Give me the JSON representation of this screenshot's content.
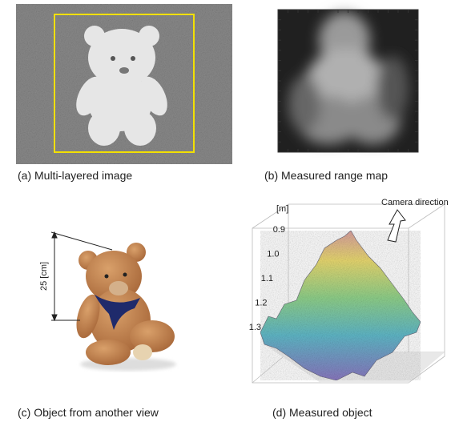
{
  "panels": [
    {
      "caption": "(a) Multi-layered image"
    },
    {
      "caption": "(b) Measured range map"
    },
    {
      "caption": "(c) Object from another view",
      "dimension_label": "25 [cm]"
    },
    {
      "caption": "(d) Measured object",
      "axis_unit": "[m]",
      "axis_labels": [
        "0.9",
        "1.0",
        "1.1",
        "1.2",
        "1.3"
      ],
      "arrow_label": "Camera direction"
    }
  ]
}
